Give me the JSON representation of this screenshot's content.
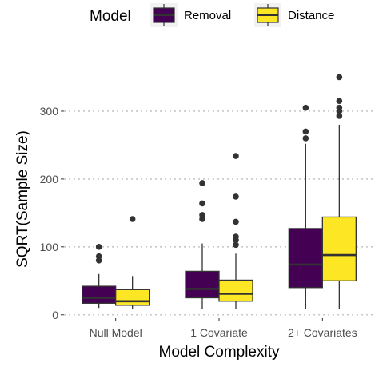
{
  "chart_data": {
    "type": "box",
    "xlabel": "Model Complexity",
    "ylabel": "SQRT(Sample Size)",
    "ylim": [
      -5,
      360
    ],
    "yticks": [
      0,
      100,
      200,
      300
    ],
    "grid": "horizontal-dotted",
    "legend_position": "top",
    "legend_title": "Model",
    "categories": [
      "Null Model",
      "1 Covariate",
      "2+ Covariates"
    ],
    "series": [
      {
        "name": "Removal",
        "color": "#440154",
        "boxes": [
          {
            "whisker_low": 10,
            "q1": 17,
            "median": 25,
            "q3": 42,
            "whisker_high": 60,
            "outliers": [
              80,
              86,
              100
            ]
          },
          {
            "whisker_low": 9,
            "q1": 25,
            "median": 38,
            "q3": 64,
            "whisker_high": 105,
            "outliers": [
              141,
              147,
              164,
              194
            ]
          },
          {
            "whisker_low": 8,
            "q1": 40,
            "median": 74,
            "q3": 127,
            "whisker_high": 252,
            "outliers": [
              260,
              270,
              305
            ]
          }
        ]
      },
      {
        "name": "Distance",
        "color": "#FDE725",
        "boxes": [
          {
            "whisker_low": 9,
            "q1": 14,
            "median": 20,
            "q3": 37,
            "whisker_high": 57,
            "outliers": [
              141
            ]
          },
          {
            "whisker_low": 8,
            "q1": 20,
            "median": 31,
            "q3": 51,
            "whisker_high": 90,
            "outliers": [
              103,
              110,
              115,
              137,
              174,
              234
            ]
          },
          {
            "whisker_low": 8,
            "q1": 50,
            "median": 88,
            "q3": 144,
            "whisker_high": 280,
            "outliers": [
              293,
              300,
              305,
              315,
              350
            ]
          }
        ]
      }
    ]
  }
}
